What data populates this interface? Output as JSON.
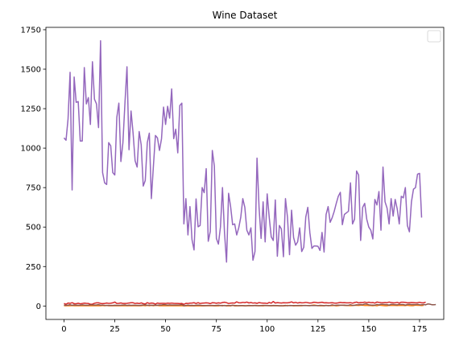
{
  "chart_data": {
    "type": "line",
    "title": "Wine Dataset",
    "xlabel": "",
    "ylabel": "",
    "xlim": [
      -8.9,
      186.9
    ],
    "ylim": [
      -85,
      1765
    ],
    "xticks": [
      0,
      25,
      50,
      75,
      100,
      125,
      150,
      175
    ],
    "yticks": [
      0,
      250,
      500,
      750,
      1000,
      1250,
      1500,
      1750
    ],
    "grid": false,
    "legend": {
      "placement": "top-right",
      "entries": []
    },
    "series": [
      {
        "color": "#9467bd",
        "values": [
          1065,
          1050,
          1185,
          1480,
          735,
          1450,
          1290,
          1295,
          1045,
          1045,
          1510,
          1280,
          1320,
          1150,
          1547,
          1310,
          1280,
          1130,
          1680,
          845,
          780,
          770,
          1035,
          1015,
          845,
          830,
          1195,
          1285,
          915,
          1035,
          1285,
          1515,
          990,
          1235,
          1095,
          920,
          880,
          1105,
          1020,
          760,
          795,
          1035,
          1095,
          680,
          885,
          1080,
          1065,
          985,
          1060,
          1260,
          1150,
          1265,
          1190,
          1375,
          1060,
          1120,
          970,
          1270,
          1285,
          520,
          680,
          450,
          630,
          420,
          355,
          678,
          502,
          510,
          750,
          718,
          870,
          410,
          472,
          985,
          886,
          428,
          392,
          500,
          750,
          463,
          278,
          714,
          630,
          515,
          520,
          450,
          495,
          562,
          680,
          625,
          480,
          450,
          495,
          290,
          345,
          937,
          625,
          428,
          660,
          406,
          710,
          562,
          438,
          415,
          672,
          315,
          510,
          488,
          312,
          680,
          562,
          325,
          607,
          434,
          385,
          407,
          495,
          345,
          372,
          564,
          625,
          465,
          365,
          380,
          380,
          378,
          352,
          466,
          342,
          580,
          630,
          530,
          560,
          600,
          650,
          695,
          720,
          515,
          580,
          590,
          600,
          780,
          520,
          550,
          855,
          830,
          415,
          625,
          650,
          550,
          500,
          480,
          425,
          675,
          640,
          725,
          480,
          880,
          660,
          620,
          520,
          680,
          570,
          675,
          615,
          520,
          695,
          685,
          750,
          510,
          470,
          660,
          740,
          750,
          835,
          840,
          560
        ]
      },
      {
        "color": "#ff7f0e",
        "values": [
          1.71,
          1.78,
          2.36,
          1.95,
          2.59,
          1.76,
          1.87,
          2.15,
          1.64,
          1.35,
          2.16,
          1.48,
          1.73,
          1.73,
          1.87,
          1.81,
          1.92,
          1.57,
          1.59,
          3.1,
          1.63,
          3.8,
          1.86,
          1.6,
          1.81,
          2.05,
          1.77,
          1.72,
          1.9,
          1.68,
          1.5,
          1.66,
          1.83,
          1.53,
          1.8,
          1.81,
          1.64,
          1.65,
          1.5,
          3.59,
          1.71,
          3.84,
          1.89,
          3.98,
          1.77,
          4.04,
          3.59,
          1.68,
          1.75,
          1.67,
          1.73,
          1.7,
          1.97,
          1.43,
          1.71,
          1.5,
          1.63,
          1.68,
          1.86,
          0.94,
          1.1,
          1.36,
          1.25,
          1.13,
          1.45,
          1.21,
          1.01,
          1.17,
          0.94,
          1.19,
          1.61,
          1.51,
          1.66,
          1.67,
          1.09,
          1.88,
          0.9,
          2.89,
          0.99,
          3.87,
          0.92,
          1.81,
          1.13,
          3.86,
          0.89,
          0.98,
          1.61,
          1.67,
          2.06,
          1.33,
          1.83,
          1.51,
          1.53,
          2.83,
          1.99,
          1.52,
          2.12,
          1.41,
          1.07,
          3.17,
          2.08,
          1.34,
          2.45,
          1.72,
          1.73,
          2.55,
          1.73,
          1.75,
          1.29,
          1.35,
          3.74,
          2.43,
          2.68,
          0.74,
          1.39,
          1.51,
          1.47,
          1.61,
          3.43,
          3.43,
          2.4,
          2.05,
          4.43,
          5.8,
          4.31,
          2.16,
          1.53,
          2.13,
          1.63,
          4.3,
          1.35,
          2.99,
          2.31,
          3.55,
          1.24,
          2.46,
          4.72,
          5.51,
          3.59,
          2.96,
          2.81,
          2.56,
          3.17,
          4.95,
          3.88,
          3.57,
          5.04,
          4.61,
          3.24,
          3.9,
          3.12,
          2.67,
          1.9,
          3.3,
          1.29,
          5.19,
          4.12,
          3.03,
          1.68,
          1.67,
          3.83,
          3.26,
          3.27,
          3.45,
          2.76,
          4.36,
          3.7,
          3.37,
          2.58,
          4.6,
          3.03,
          2.39,
          2.51,
          5.65,
          3.91,
          4.28,
          2.59,
          4.1
        ]
      },
      {
        "color": "#d62728",
        "values": [
          15.6,
          11.2,
          18.6,
          16.8,
          21,
          15.2,
          14.6,
          17.6,
          14,
          16,
          18,
          16.8,
          16,
          11.4,
          12,
          17.2,
          20,
          20,
          16.5,
          15.2,
          16,
          18.6,
          16.6,
          17.8,
          20,
          25,
          16.1,
          17,
          19.4,
          16,
          16.3,
          16.8,
          19.1,
          20.5,
          20.5,
          16,
          18,
          15.5,
          20,
          15,
          13.2,
          21,
          16,
          18.8,
          17.4,
          12.4,
          18.8,
          16,
          17,
          16.8,
          16,
          18,
          16.8,
          18.5,
          17,
          16,
          16,
          15.2,
          16,
          10.6,
          16.8,
          16,
          18,
          19,
          20.8,
          16,
          21,
          16,
          18,
          19,
          20,
          19,
          15,
          21,
          20,
          17.5,
          20,
          18,
          22,
          24,
          21,
          16,
          18,
          19.6,
          18.5,
          26.5,
          20.5,
          20,
          23,
          21.5,
          25,
          19.5,
          22,
          18.5,
          20,
          17,
          21.5,
          19.5,
          18,
          18,
          16,
          22.5,
          18,
          28.5,
          19,
          21.5,
          20,
          19,
          21,
          20,
          20,
          22,
          26,
          20,
          23,
          19,
          22,
          20,
          21,
          23,
          21,
          19,
          20,
          24,
          22.5,
          20,
          22,
          24,
          20,
          21,
          19.5,
          20,
          21,
          19,
          18,
          20,
          22.5,
          21,
          21.5,
          20,
          20,
          21,
          18,
          22,
          25,
          19.5,
          22,
          21.5,
          25,
          21,
          24,
          21,
          22,
          18.5,
          25,
          22.5,
          21.5,
          21,
          22,
          21,
          25,
          22,
          20,
          20,
          23,
          18.5,
          24,
          24,
          22.5,
          20,
          21,
          22,
          21.5,
          20,
          21,
          23.5,
          20,
          20,
          24.5
        ]
      },
      {
        "color": "#8c564b",
        "values": [
          5.64,
          4.38,
          5.68,
          7.8,
          4.32,
          6.75,
          5.25,
          5.05,
          5.2,
          7.22,
          5.75,
          5,
          5.6,
          7.5,
          7.3,
          6.2,
          6.6,
          8.7,
          5.1,
          5.65,
          4.5,
          3.8,
          3.93,
          3.52,
          3.58,
          4.8,
          3.95,
          4.5,
          4.7,
          5.7,
          6.9,
          3.84,
          5.4,
          4.2,
          5.1,
          4.6,
          4.25,
          3.7,
          5.1,
          6.13,
          7.2,
          4.28,
          5.43,
          4.36,
          5.04,
          5.24,
          4.9,
          6.1,
          6.2,
          8.9,
          7.2,
          5.6,
          7.05,
          6.3,
          5.85,
          6.25,
          6.38,
          6.8,
          8.9,
          1.95,
          3.27,
          5.75,
          3.8,
          4.45,
          2.95,
          4.6,
          5.3,
          4.68,
          3.17,
          2.85,
          3.05,
          3.38,
          3.74,
          3.35,
          3.21,
          3.8,
          4.6,
          2.65,
          3.4,
          2.57,
          2.5,
          3.9,
          2.2,
          4.8,
          3.05,
          2.62,
          2.45,
          2.6,
          2.8,
          1.74,
          2.4,
          3.6,
          3.05,
          2.15,
          3.25,
          2.6,
          2.5,
          2.9,
          3.4,
          3.3,
          2.7,
          2.9,
          2,
          3.8,
          3.08,
          2.9,
          1.9,
          1.95,
          2.06,
          3.4,
          1.28,
          3.25,
          2.9,
          2.8,
          2.94,
          2.7,
          3.4,
          3.3,
          2.7,
          2.65,
          2.9,
          2,
          3.8,
          3.08,
          2.9,
          2.5,
          3.93,
          3.4,
          2.12,
          3.1,
          2.6,
          2.8,
          7.1,
          3.85,
          5,
          5.7,
          4.92,
          4.6,
          5.6,
          4.35,
          4.4,
          8.21,
          4,
          4.9,
          7.6,
          7.9,
          9.01,
          7.5,
          13,
          11.75,
          7.65,
          5.88,
          5.58,
          5.28,
          9.58,
          6.62,
          10.68,
          10.26,
          8.66,
          8.5,
          5.5,
          9.9,
          9.7,
          7.7,
          7.3,
          10.2,
          9.3,
          9.2,
          5.7,
          9.4,
          10.8,
          8.6,
          9.2,
          8.7,
          10.52,
          7.6,
          7.9,
          9.01,
          7.5,
          13,
          11.75,
          8.2,
          7.7,
          9.2
        ]
      }
    ]
  }
}
